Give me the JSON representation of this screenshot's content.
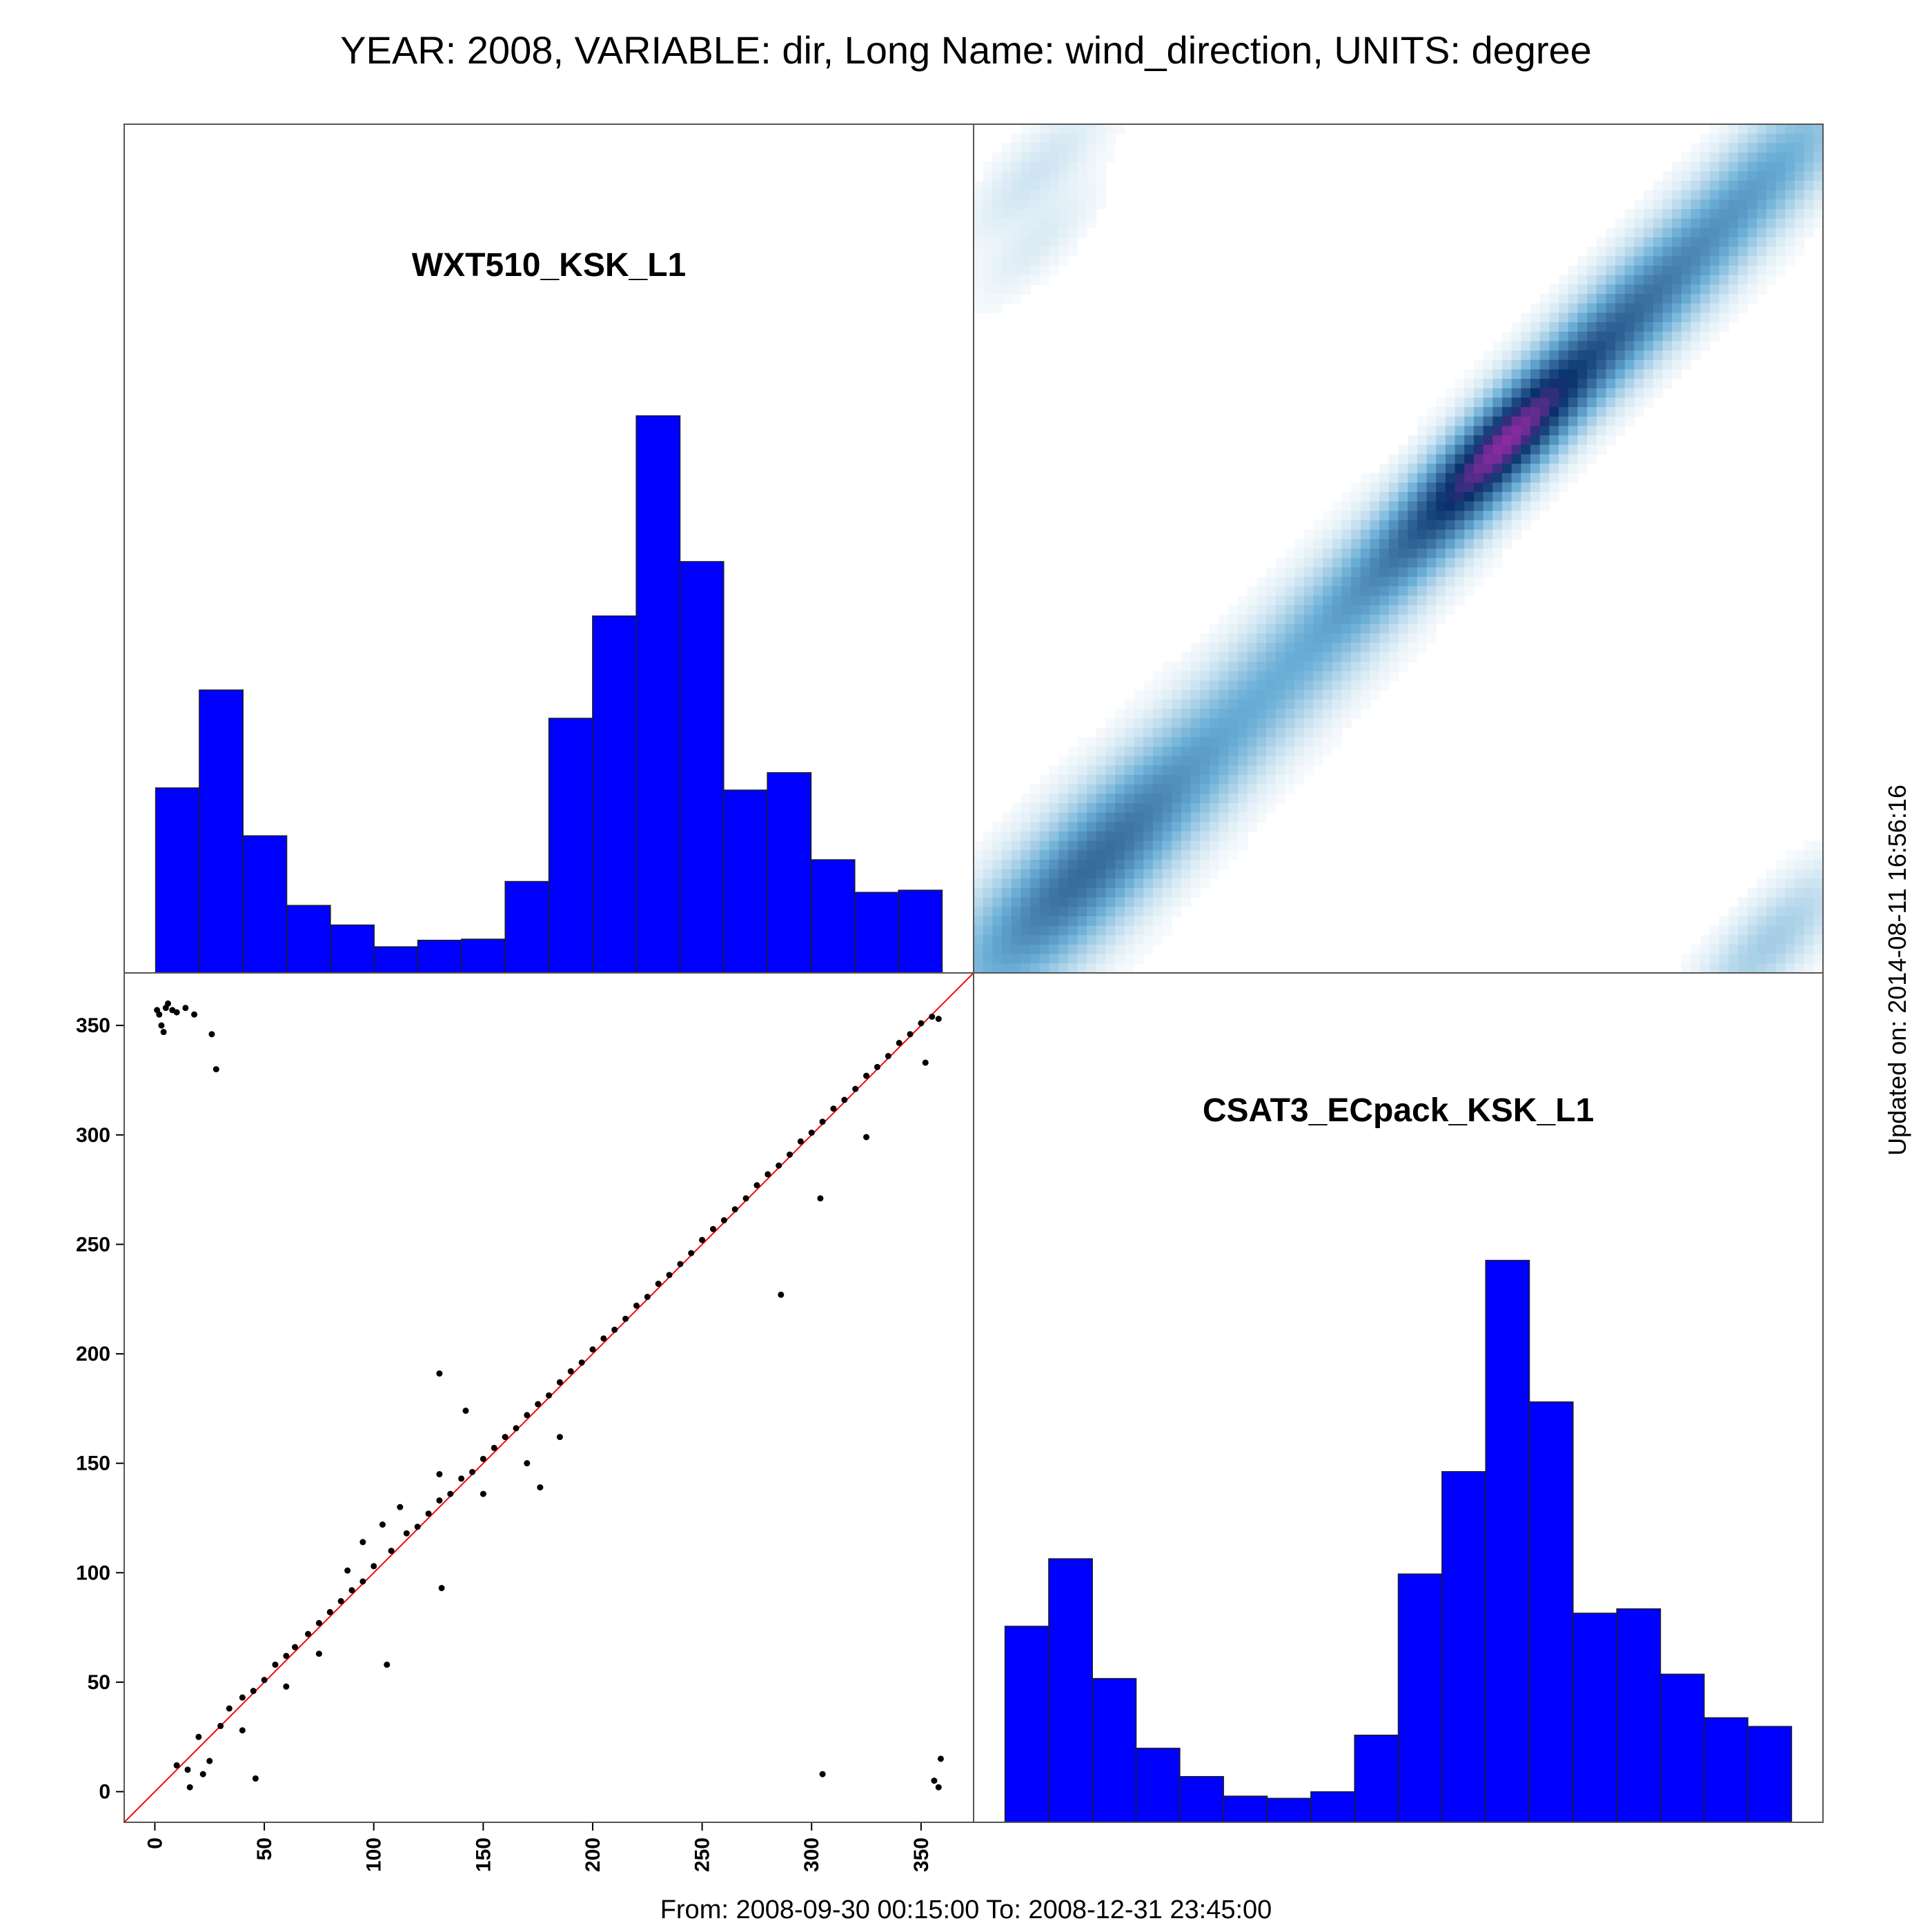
{
  "title": "YEAR: 2008, VARIABLE: dir, Long Name: wind_direction, UNITS: degree",
  "footer": "From: 2008-09-30 00:15:00 To: 2008-12-31 23:45:00",
  "updated": "Updated on: 2014-08-11 16:56:16",
  "colors": {
    "bar": "#0000ff",
    "bar_edge": "#202020",
    "points": "#000000",
    "identity_line": "#ff0000",
    "density_low": "#ffffff",
    "density_mid": "#6aaed6",
    "density_high": "#08306b",
    "density_peak": "#8b2ba0"
  },
  "chart_data": [
    {
      "type": "bar",
      "panel": "top-left",
      "name": "WXT510_KSK_L1",
      "bin_edges": [
        0,
        20,
        40,
        60,
        80,
        100,
        120,
        140,
        160,
        180,
        200,
        220,
        240,
        260,
        280,
        300,
        320,
        340,
        360
      ],
      "values": [
        850,
        1300,
        630,
        310,
        220,
        120,
        150,
        155,
        420,
        1170,
        1640,
        2560,
        1890,
        840,
        920,
        520,
        370,
        380
      ],
      "ylim": [
        0,
        3900
      ]
    },
    {
      "type": "heatmap",
      "panel": "top-right",
      "description_kind": "2D density of CSAT3_ECpack_KSK_L1 (x) vs WXT510_KSK_L1 (y)",
      "xlim": [
        -14,
        374
      ],
      "ylim": [
        -14,
        374
      ],
      "kernels": [
        {
          "x": 25,
          "y": 20,
          "w": 1.0,
          "s": 28
        },
        {
          "x": 60,
          "y": 55,
          "w": 0.5,
          "s": 26
        },
        {
          "x": 100,
          "y": 95,
          "w": 0.35,
          "s": 26
        },
        {
          "x": 140,
          "y": 135,
          "w": 0.35,
          "s": 26
        },
        {
          "x": 175,
          "y": 172,
          "w": 0.55,
          "s": 22
        },
        {
          "x": 205,
          "y": 203,
          "w": 1.0,
          "s": 20
        },
        {
          "x": 228,
          "y": 228,
          "w": 1.4,
          "s": 18
        },
        {
          "x": 250,
          "y": 250,
          "w": 0.95,
          "s": 20
        },
        {
          "x": 280,
          "y": 280,
          "w": 0.75,
          "s": 22
        },
        {
          "x": 310,
          "y": 310,
          "w": 0.55,
          "s": 22
        },
        {
          "x": 350,
          "y": 352,
          "w": 0.6,
          "s": 22
        },
        {
          "x": 15,
          "y": 352,
          "w": 0.15,
          "s": 16
        },
        {
          "x": 15,
          "y": 320,
          "w": 0.1,
          "s": 14
        },
        {
          "x": 350,
          "y": 0,
          "w": 0.35,
          "s": 18
        }
      ]
    },
    {
      "type": "scatter",
      "panel": "bottom-left",
      "xlabel": "",
      "ylabel": "",
      "xlim": [
        -14,
        374
      ],
      "ylim": [
        -14,
        374
      ],
      "xticks": [
        0,
        50,
        100,
        150,
        200,
        250,
        300,
        350
      ],
      "yticks": [
        0,
        50,
        100,
        150,
        200,
        250,
        300,
        350
      ],
      "reference_line": "y = x",
      "points": [
        [
          1,
          357
        ],
        [
          2,
          355
        ],
        [
          3,
          350
        ],
        [
          5,
          358
        ],
        [
          6,
          360
        ],
        [
          8,
          357
        ],
        [
          10,
          356
        ],
        [
          14,
          358
        ],
        [
          18,
          355
        ],
        [
          26,
          346
        ],
        [
          28,
          330
        ],
        [
          4,
          347
        ],
        [
          305,
          8
        ],
        [
          356,
          5
        ],
        [
          358,
          2
        ],
        [
          359,
          15
        ],
        [
          106,
          58
        ],
        [
          131,
          93
        ],
        [
          130,
          191
        ],
        [
          142,
          174
        ],
        [
          176,
          139
        ],
        [
          286,
          227
        ],
        [
          304,
          271
        ],
        [
          325,
          299
        ],
        [
          352,
          333
        ],
        [
          46,
          6
        ],
        [
          15,
          10
        ],
        [
          10,
          12
        ],
        [
          20,
          25
        ],
        [
          30,
          30
        ],
        [
          34,
          38
        ],
        [
          40,
          43
        ],
        [
          45,
          46
        ],
        [
          50,
          51
        ],
        [
          55,
          58
        ],
        [
          60,
          62
        ],
        [
          64,
          66
        ],
        [
          70,
          72
        ],
        [
          75,
          77
        ],
        [
          80,
          82
        ],
        [
          85,
          87
        ],
        [
          90,
          92
        ],
        [
          95,
          96
        ],
        [
          100,
          103
        ],
        [
          108,
          110
        ],
        [
          115,
          118
        ],
        [
          120,
          121
        ],
        [
          125,
          127
        ],
        [
          130,
          133
        ],
        [
          135,
          136
        ],
        [
          140,
          143
        ],
        [
          145,
          146
        ],
        [
          150,
          152
        ],
        [
          155,
          157
        ],
        [
          160,
          162
        ],
        [
          165,
          166
        ],
        [
          170,
          172
        ],
        [
          175,
          177
        ],
        [
          180,
          181
        ],
        [
          185,
          187
        ],
        [
          190,
          192
        ],
        [
          195,
          196
        ],
        [
          200,
          202
        ],
        [
          205,
          207
        ],
        [
          210,
          211
        ],
        [
          215,
          216
        ],
        [
          220,
          222
        ],
        [
          225,
          226
        ],
        [
          230,
          232
        ],
        [
          235,
          236
        ],
        [
          240,
          241
        ],
        [
          245,
          246
        ],
        [
          250,
          252
        ],
        [
          255,
          257
        ],
        [
          260,
          261
        ],
        [
          265,
          266
        ],
        [
          270,
          271
        ],
        [
          275,
          277
        ],
        [
          280,
          282
        ],
        [
          285,
          286
        ],
        [
          290,
          291
        ],
        [
          295,
          297
        ],
        [
          300,
          301
        ],
        [
          305,
          306
        ],
        [
          310,
          312
        ],
        [
          315,
          316
        ],
        [
          320,
          321
        ],
        [
          325,
          327
        ],
        [
          330,
          331
        ],
        [
          335,
          336
        ],
        [
          340,
          342
        ],
        [
          345,
          346
        ],
        [
          350,
          351
        ],
        [
          355,
          354
        ],
        [
          358,
          353
        ],
        [
          88,
          101
        ],
        [
          95,
          114
        ],
        [
          104,
          122
        ],
        [
          112,
          130
        ],
        [
          130,
          145
        ],
        [
          150,
          136
        ],
        [
          170,
          150
        ],
        [
          185,
          162
        ],
        [
          60,
          48
        ],
        [
          75,
          63
        ],
        [
          40,
          28
        ],
        [
          25,
          14
        ],
        [
          16,
          2
        ],
        [
          22,
          8
        ]
      ]
    },
    {
      "type": "bar",
      "panel": "bottom-right",
      "name": "CSAT3_ECpack_KSK_L1",
      "bin_edges": [
        0,
        20,
        40,
        60,
        80,
        100,
        120,
        140,
        160,
        180,
        200,
        220,
        240,
        260,
        280,
        300,
        320,
        340,
        360
      ],
      "values": [
        900,
        1210,
        660,
        340,
        210,
        120,
        110,
        140,
        400,
        1140,
        1610,
        2580,
        1930,
        960,
        980,
        680,
        480,
        440
      ],
      "ylim": [
        0,
        3900
      ]
    }
  ]
}
